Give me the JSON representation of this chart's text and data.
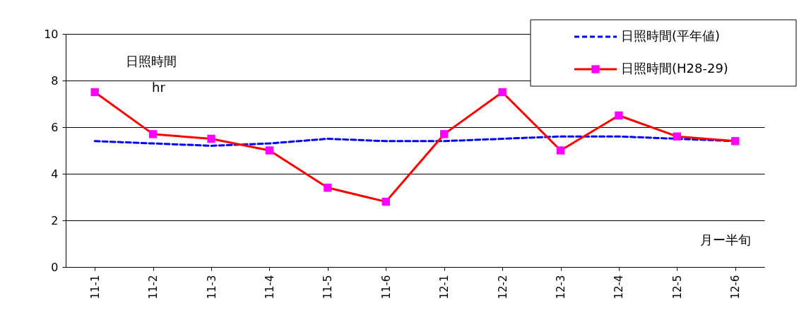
{
  "chart_data": {
    "type": "line",
    "ylabel": "日照時間",
    "xlabel": "月ー半旬",
    "annotations": [
      "hr"
    ],
    "categories": [
      "11-1",
      "11-2",
      "11-3",
      "11-4",
      "11-5",
      "11-6",
      "12-1",
      "12-2",
      "12-3",
      "12-4",
      "12-5",
      "12-6"
    ],
    "series": [
      {
        "name": "日照時間(平年値)",
        "color": "#0000ff",
        "line_style": "dashed",
        "marker": "none",
        "values": [
          5.4,
          5.3,
          5.2,
          5.3,
          5.5,
          5.4,
          5.4,
          5.5,
          5.6,
          5.6,
          5.5,
          5.4
        ]
      },
      {
        "name": "日照時間(H28-29)",
        "color": "#ff0000",
        "colors": [
          "#ff00ff",
          "#ff00ff",
          "#ff00ff",
          "#ff00ff",
          "#ff00ff",
          "#ff00ff",
          "#ff00ff",
          "#ff00ff",
          "#ff00ff",
          "#ff00ff",
          "#ff00ff",
          "#ff00ff"
        ],
        "line_style": "solid",
        "marker": "square",
        "values": [
          7.5,
          5.7,
          5.5,
          5.0,
          3.4,
          2.8,
          5.7,
          7.5,
          5.0,
          6.5,
          5.6,
          5.4
        ]
      }
    ],
    "ylim": [
      0,
      10
    ],
    "yticks": [
      0,
      2,
      4,
      6,
      8,
      10
    ],
    "grid": "y",
    "legend": "top right"
  }
}
